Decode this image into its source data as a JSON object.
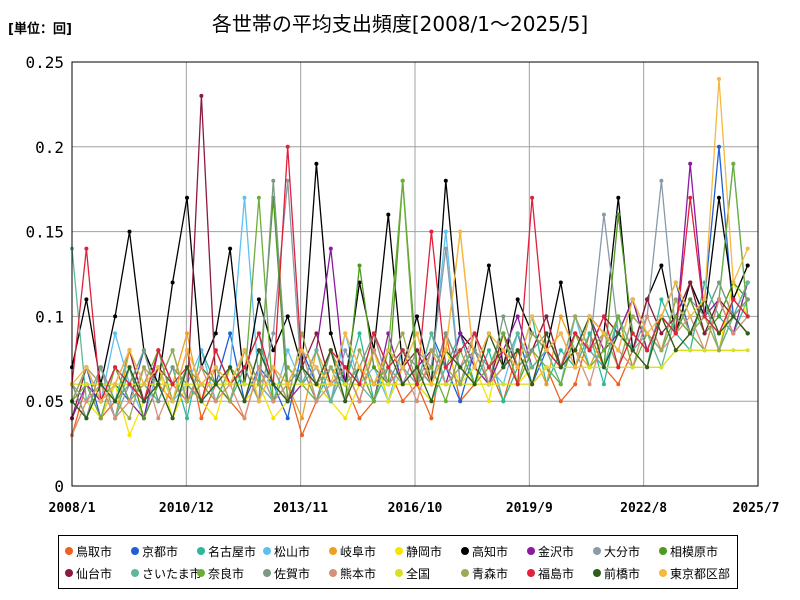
{
  "chart_data": {
    "type": "line",
    "title": "各世帯の平均支出頻度[2008/1～2025/5]",
    "unit_label": "[単位：回]",
    "xlabel": "",
    "ylabel": "",
    "ylim": [
      0,
      0.25
    ],
    "y_ticks": [
      "0",
      "0.05",
      "0.1",
      "0.15",
      "0.2",
      "0.25"
    ],
    "x_ticks": [
      "2008/1",
      "2010/12",
      "2013/11",
      "2016/10",
      "2019/9",
      "2022/8",
      "2025/7"
    ],
    "grid": true,
    "legend_position": "bottom",
    "series": [
      {
        "name": "鳥取市",
        "color": "#f0601e",
        "values": [
          0.03,
          0.06,
          0.04,
          0.05,
          0.07,
          0.04,
          0.06,
          0.05,
          0.08,
          0.04,
          0.06,
          0.05,
          0.04,
          0.07,
          0.05,
          0.06,
          0.03,
          0.05,
          0.08,
          0.06,
          0.04,
          0.05,
          0.07,
          0.05,
          0.06,
          0.04,
          0.09,
          0.05,
          0.06,
          0.07,
          0.05,
          0.08,
          0.06,
          0.07,
          0.05,
          0.06,
          0.09,
          0.07,
          0.06,
          0.08,
          0.07,
          0.1,
          0.08,
          0.09,
          0.11,
          0.08,
          0.1,
          0.09
        ]
      },
      {
        "name": "京都市",
        "color": "#1f5fd8",
        "values": [
          0.05,
          0.07,
          0.04,
          0.06,
          0.05,
          0.08,
          0.06,
          0.04,
          0.07,
          0.05,
          0.06,
          0.09,
          0.05,
          0.07,
          0.06,
          0.04,
          0.08,
          0.06,
          0.05,
          0.07,
          0.06,
          0.08,
          0.05,
          0.07,
          0.06,
          0.09,
          0.07,
          0.05,
          0.08,
          0.06,
          0.07,
          0.09,
          0.06,
          0.08,
          0.07,
          0.1,
          0.08,
          0.07,
          0.09,
          0.11,
          0.08,
          0.1,
          0.12,
          0.09,
          0.11,
          0.2,
          0.1,
          0.12
        ]
      },
      {
        "name": "名古屋市",
        "color": "#2eb89a",
        "values": [
          0.06,
          0.04,
          0.07,
          0.05,
          0.08,
          0.06,
          0.05,
          0.07,
          0.04,
          0.08,
          0.06,
          0.05,
          0.07,
          0.09,
          0.05,
          0.06,
          0.08,
          0.05,
          0.07,
          0.06,
          0.09,
          0.05,
          0.07,
          0.08,
          0.06,
          0.05,
          0.07,
          0.09,
          0.06,
          0.08,
          0.05,
          0.07,
          0.1,
          0.06,
          0.08,
          0.07,
          0.09,
          0.06,
          0.1,
          0.08,
          0.07,
          0.11,
          0.09,
          0.08,
          0.12,
          0.1,
          0.09,
          0.11
        ]
      },
      {
        "name": "松山市",
        "color": "#5fc0f0",
        "values": [
          0.04,
          0.06,
          0.05,
          0.09,
          0.06,
          0.04,
          0.07,
          0.05,
          0.06,
          0.08,
          0.05,
          0.07,
          0.17,
          0.06,
          0.05,
          0.08,
          0.06,
          0.07,
          0.05,
          0.09,
          0.06,
          0.07,
          0.05,
          0.08,
          0.06,
          0.07,
          0.15,
          0.06,
          0.08,
          0.07,
          0.06,
          0.09,
          0.07,
          0.08,
          0.06,
          0.1,
          0.07,
          0.09,
          0.08,
          0.11,
          0.09,
          0.08,
          0.1,
          0.12,
          0.09,
          0.11,
          0.19,
          0.1
        ]
      },
      {
        "name": "岐阜市",
        "color": "#f0a020",
        "values": [
          0.05,
          0.07,
          0.06,
          0.04,
          0.08,
          0.05,
          0.07,
          0.06,
          0.09,
          0.05,
          0.07,
          0.06,
          0.08,
          0.05,
          0.07,
          0.06,
          0.04,
          0.08,
          0.06,
          0.07,
          0.05,
          0.08,
          0.06,
          0.07,
          0.09,
          0.06,
          0.08,
          0.15,
          0.07,
          0.06,
          0.09,
          0.07,
          0.08,
          0.06,
          0.1,
          0.08,
          0.07,
          0.09,
          0.08,
          0.11,
          0.08,
          0.1,
          0.09,
          0.12,
          0.1,
          0.09,
          0.11,
          0.13
        ]
      },
      {
        "name": "静岡市",
        "color": "#f5e600",
        "values": [
          0.03,
          0.05,
          0.04,
          0.06,
          0.03,
          0.05,
          0.07,
          0.04,
          0.06,
          0.05,
          0.04,
          0.07,
          0.05,
          0.06,
          0.04,
          0.05,
          0.07,
          0.06,
          0.05,
          0.04,
          0.06,
          0.08,
          0.05,
          0.07,
          0.06,
          0.05,
          0.08,
          0.06,
          0.07,
          0.05,
          0.09,
          0.06,
          0.07,
          0.08,
          0.06,
          0.09,
          0.07,
          0.08,
          0.1,
          0.07,
          0.09,
          0.08,
          0.11,
          0.09,
          0.1,
          0.08,
          0.12,
          0.1
        ]
      },
      {
        "name": "高知市",
        "color": "#000000",
        "values": [
          0.07,
          0.11,
          0.06,
          0.1,
          0.15,
          0.08,
          0.06,
          0.12,
          0.17,
          0.07,
          0.09,
          0.14,
          0.06,
          0.11,
          0.08,
          0.1,
          0.07,
          0.19,
          0.09,
          0.06,
          0.12,
          0.08,
          0.16,
          0.07,
          0.1,
          0.06,
          0.18,
          0.09,
          0.08,
          0.13,
          0.07,
          0.11,
          0.09,
          0.08,
          0.12,
          0.07,
          0.1,
          0.09,
          0.17,
          0.08,
          0.11,
          0.13,
          0.09,
          0.12,
          0.1,
          0.17,
          0.11,
          0.13
        ]
      },
      {
        "name": "金沢市",
        "color": "#8b1a9e",
        "values": [
          0.04,
          0.06,
          0.05,
          0.07,
          0.05,
          0.04,
          0.08,
          0.06,
          0.05,
          0.07,
          0.06,
          0.05,
          0.08,
          0.06,
          0.07,
          0.05,
          0.06,
          0.08,
          0.14,
          0.06,
          0.07,
          0.05,
          0.09,
          0.06,
          0.07,
          0.08,
          0.06,
          0.09,
          0.07,
          0.06,
          0.08,
          0.1,
          0.07,
          0.08,
          0.09,
          0.07,
          0.1,
          0.08,
          0.09,
          0.11,
          0.08,
          0.1,
          0.09,
          0.19,
          0.1,
          0.11,
          0.09,
          0.12
        ]
      },
      {
        "name": "大分市",
        "color": "#8a9aa8",
        "values": [
          0.06,
          0.05,
          0.07,
          0.04,
          0.06,
          0.08,
          0.05,
          0.07,
          0.06,
          0.05,
          0.08,
          0.06,
          0.07,
          0.05,
          0.09,
          0.18,
          0.06,
          0.07,
          0.05,
          0.08,
          0.06,
          0.09,
          0.07,
          0.06,
          0.08,
          0.07,
          0.14,
          0.06,
          0.08,
          0.07,
          0.09,
          0.06,
          0.08,
          0.1,
          0.07,
          0.09,
          0.08,
          0.16,
          0.09,
          0.08,
          0.1,
          0.18,
          0.09,
          0.11,
          0.1,
          0.12,
          0.1,
          0.11
        ]
      },
      {
        "name": "相模原市",
        "color": "#4e9a1e",
        "values": [
          0.05,
          0.04,
          0.06,
          0.05,
          0.07,
          0.04,
          0.06,
          0.08,
          0.05,
          0.07,
          0.06,
          0.05,
          0.08,
          0.06,
          0.17,
          0.05,
          0.07,
          0.06,
          0.08,
          0.05,
          0.13,
          0.07,
          0.06,
          0.18,
          0.07,
          0.06,
          0.08,
          0.07,
          0.06,
          0.09,
          0.07,
          0.08,
          0.06,
          0.09,
          0.07,
          0.08,
          0.1,
          0.07,
          0.16,
          0.09,
          0.08,
          0.1,
          0.09,
          0.11,
          0.09,
          0.1,
          0.12,
          0.11
        ]
      },
      {
        "name": "仙台市",
        "color": "#8c1a3c",
        "values": [
          0.04,
          0.07,
          0.05,
          0.06,
          0.08,
          0.05,
          0.07,
          0.06,
          0.05,
          0.23,
          0.06,
          0.07,
          0.05,
          0.08,
          0.06,
          0.05,
          0.07,
          0.09,
          0.06,
          0.07,
          0.05,
          0.08,
          0.06,
          0.07,
          0.08,
          0.06,
          0.09,
          0.07,
          0.08,
          0.06,
          0.09,
          0.07,
          0.08,
          0.1,
          0.07,
          0.09,
          0.08,
          0.1,
          0.09,
          0.08,
          0.11,
          0.09,
          0.1,
          0.12,
          0.09,
          0.11,
          0.1,
          0.09
        ]
      },
      {
        "name": "さいたま市",
        "color": "#5fb89a",
        "values": [
          0.14,
          0.05,
          0.06,
          0.04,
          0.07,
          0.05,
          0.06,
          0.08,
          0.05,
          0.06,
          0.07,
          0.05,
          0.08,
          0.06,
          0.05,
          0.07,
          0.06,
          0.08,
          0.05,
          0.07,
          0.06,
          0.05,
          0.08,
          0.07,
          0.06,
          0.09,
          0.06,
          0.07,
          0.08,
          0.06,
          0.07,
          0.09,
          0.07,
          0.08,
          0.06,
          0.09,
          0.08,
          0.07,
          0.1,
          0.08,
          0.09,
          0.07,
          0.1,
          0.09,
          0.11,
          0.08,
          0.1,
          0.12
        ]
      },
      {
        "name": "奈良市",
        "color": "#6cae3a",
        "values": [
          0.05,
          0.06,
          0.04,
          0.07,
          0.05,
          0.06,
          0.08,
          0.05,
          0.07,
          0.06,
          0.05,
          0.07,
          0.06,
          0.17,
          0.05,
          0.07,
          0.06,
          0.05,
          0.08,
          0.06,
          0.07,
          0.05,
          0.08,
          0.18,
          0.06,
          0.07,
          0.05,
          0.08,
          0.06,
          0.07,
          0.09,
          0.06,
          0.08,
          0.07,
          0.06,
          0.09,
          0.07,
          0.08,
          0.1,
          0.07,
          0.09,
          0.08,
          0.1,
          0.09,
          0.08,
          0.11,
          0.19,
          0.1
        ]
      },
      {
        "name": "佐賀市",
        "color": "#7a9a80",
        "values": [
          0.06,
          0.04,
          0.07,
          0.05,
          0.06,
          0.08,
          0.05,
          0.07,
          0.06,
          0.05,
          0.08,
          0.06,
          0.07,
          0.05,
          0.18,
          0.06,
          0.07,
          0.05,
          0.08,
          0.06,
          0.07,
          0.09,
          0.06,
          0.08,
          0.07,
          0.06,
          0.09,
          0.07,
          0.08,
          0.06,
          0.1,
          0.07,
          0.08,
          0.09,
          0.07,
          0.1,
          0.08,
          0.09,
          0.07,
          0.1,
          0.09,
          0.08,
          0.11,
          0.09,
          0.1,
          0.12,
          0.1,
          0.11
        ]
      },
      {
        "name": "熊本市",
        "color": "#d8907a",
        "values": [
          0.03,
          0.05,
          0.06,
          0.04,
          0.05,
          0.07,
          0.04,
          0.06,
          0.05,
          0.07,
          0.05,
          0.06,
          0.04,
          0.07,
          0.05,
          0.06,
          0.08,
          0.05,
          0.06,
          0.07,
          0.05,
          0.08,
          0.06,
          0.07,
          0.05,
          0.08,
          0.06,
          0.07,
          0.09,
          0.06,
          0.07,
          0.08,
          0.06,
          0.09,
          0.07,
          0.08,
          0.06,
          0.09,
          0.08,
          0.07,
          0.1,
          0.08,
          0.09,
          0.1,
          0.08,
          0.11,
          0.09,
          0.1
        ]
      },
      {
        "name": "全国",
        "color": "#d8e020",
        "values": [
          0.06,
          0.06,
          0.06,
          0.06,
          0.06,
          0.06,
          0.06,
          0.06,
          0.06,
          0.06,
          0.06,
          0.06,
          0.06,
          0.06,
          0.06,
          0.06,
          0.06,
          0.06,
          0.06,
          0.06,
          0.06,
          0.06,
          0.06,
          0.06,
          0.06,
          0.06,
          0.06,
          0.06,
          0.06,
          0.06,
          0.06,
          0.06,
          0.06,
          0.07,
          0.07,
          0.07,
          0.07,
          0.07,
          0.07,
          0.07,
          0.07,
          0.07,
          0.08,
          0.08,
          0.08,
          0.08,
          0.08,
          0.08
        ]
      },
      {
        "name": "青森市",
        "color": "#a0a858",
        "values": [
          0.05,
          0.07,
          0.06,
          0.05,
          0.04,
          0.07,
          0.06,
          0.08,
          0.05,
          0.06,
          0.07,
          0.05,
          0.08,
          0.06,
          0.07,
          0.05,
          0.09,
          0.06,
          0.07,
          0.05,
          0.08,
          0.06,
          0.07,
          0.09,
          0.06,
          0.08,
          0.07,
          0.06,
          0.09,
          0.07,
          0.08,
          0.06,
          0.09,
          0.08,
          0.07,
          0.1,
          0.08,
          0.09,
          0.07,
          0.1,
          0.09,
          0.08,
          0.11,
          0.09,
          0.1,
          0.08,
          0.11,
          0.1
        ]
      },
      {
        "name": "福島市",
        "color": "#e0203c",
        "values": [
          0.06,
          0.14,
          0.05,
          0.07,
          0.06,
          0.05,
          0.08,
          0.06,
          0.07,
          0.05,
          0.08,
          0.06,
          0.07,
          0.09,
          0.06,
          0.2,
          0.07,
          0.06,
          0.08,
          0.07,
          0.06,
          0.09,
          0.07,
          0.08,
          0.06,
          0.15,
          0.07,
          0.08,
          0.09,
          0.07,
          0.08,
          0.06,
          0.17,
          0.08,
          0.07,
          0.09,
          0.08,
          0.1,
          0.07,
          0.09,
          0.08,
          0.1,
          0.09,
          0.17,
          0.1,
          0.09,
          0.11,
          0.1
        ]
      },
      {
        "name": "前橋市",
        "color": "#2e5e1a",
        "values": [
          0.05,
          0.04,
          0.06,
          0.05,
          0.07,
          0.05,
          0.06,
          0.04,
          0.07,
          0.05,
          0.06,
          0.07,
          0.05,
          0.08,
          0.06,
          0.05,
          0.07,
          0.06,
          0.08,
          0.05,
          0.07,
          0.06,
          0.08,
          0.06,
          0.07,
          0.05,
          0.08,
          0.07,
          0.06,
          0.09,
          0.07,
          0.08,
          0.06,
          0.09,
          0.07,
          0.08,
          0.1,
          0.07,
          0.09,
          0.08,
          0.07,
          0.1,
          0.08,
          0.09,
          0.11,
          0.09,
          0.1,
          0.09
        ]
      },
      {
        "name": "東京都区部",
        "color": "#f5b840",
        "values": [
          0.06,
          0.07,
          0.05,
          0.06,
          0.08,
          0.06,
          0.07,
          0.05,
          0.08,
          0.06,
          0.07,
          0.06,
          0.08,
          0.05,
          0.07,
          0.06,
          0.08,
          0.07,
          0.06,
          0.09,
          0.07,
          0.06,
          0.08,
          0.07,
          0.09,
          0.06,
          0.08,
          0.15,
          0.07,
          0.09,
          0.08,
          0.07,
          0.1,
          0.08,
          0.09,
          0.07,
          0.1,
          0.09,
          0.08,
          0.11,
          0.09,
          0.1,
          0.12,
          0.1,
          0.11,
          0.24,
          0.12,
          0.14
        ]
      }
    ]
  }
}
